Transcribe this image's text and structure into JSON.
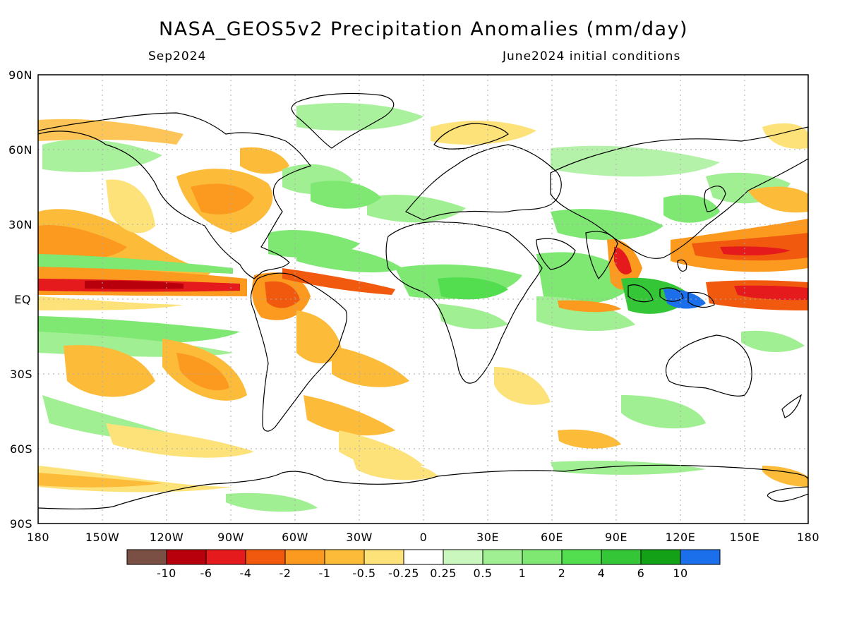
{
  "header": {
    "title": "NASA_GEOS5v2 Precipitation Anomalies (mm/day)",
    "subtitle_left": "Sep2024",
    "subtitle_right": "June2024 initial conditions"
  },
  "map": {
    "lat_labels": [
      "90N",
      "60N",
      "30N",
      "EQ",
      "30S",
      "60S",
      "90S"
    ],
    "lon_labels": [
      "180",
      "150W",
      "120W",
      "90W",
      "60W",
      "30W",
      "0",
      "30E",
      "60E",
      "90E",
      "120E",
      "150E",
      "180"
    ]
  },
  "colorbar": {
    "colors": [
      "#7a4f44",
      "#b8000d",
      "#e41a1c",
      "#f15a0e",
      "#fb9a1f",
      "#fdbb3a",
      "#fde27a",
      "#ffffff",
      "#c9f7bd",
      "#a1ef93",
      "#7ee873",
      "#52de4f",
      "#34c637",
      "#12a117",
      "#1c6fea"
    ],
    "tick_labels": [
      "-10",
      "-6",
      "-4",
      "-2",
      "-1",
      "-0.5",
      "-0.25",
      "0.25",
      "0.5",
      "1",
      "2",
      "4",
      "6",
      "10"
    ]
  }
}
